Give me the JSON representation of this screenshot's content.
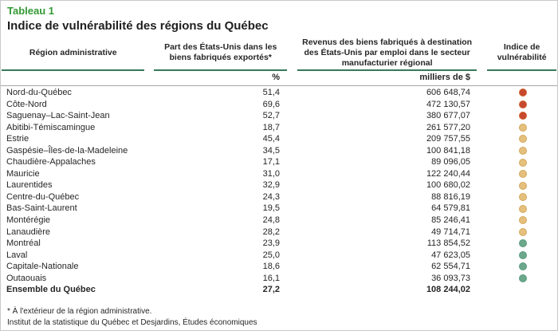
{
  "table": {
    "tag": "Tableau 1",
    "title": "Indice de vulnérabilité des régions du Québec",
    "columns": [
      {
        "label": "Région administrative",
        "unit": ""
      },
      {
        "label": "Part des États-Unis dans les biens fabriqués exportés*",
        "unit": "%"
      },
      {
        "label": "Revenus des biens fabriqués à destination des États-Unis par emploi dans le secteur manufacturier régional",
        "unit": "milliers de $"
      },
      {
        "label": "Indice de vulnérabilité",
        "unit": ""
      }
    ],
    "rows": [
      {
        "region": "Nord-du-Québec",
        "share": "51,4",
        "revenue": "606 648,74",
        "level": "high",
        "bold": false
      },
      {
        "region": "Côte-Nord",
        "share": "69,6",
        "revenue": "472 130,57",
        "level": "high",
        "bold": false
      },
      {
        "region": "Saguenay–Lac-Saint-Jean",
        "share": "52,7",
        "revenue": "380 677,07",
        "level": "high",
        "bold": false
      },
      {
        "region": "Abitibi-Témiscamingue",
        "share": "18,7",
        "revenue": "261 577,20",
        "level": "medium",
        "bold": false
      },
      {
        "region": "Estrie",
        "share": "45,4",
        "revenue": "209 757,55",
        "level": "medium",
        "bold": false
      },
      {
        "region": "Gaspésie–Îles-de-la-Madeleine",
        "share": "34,5",
        "revenue": "100 841,18",
        "level": "medium",
        "bold": false
      },
      {
        "region": "Chaudière-Appalaches",
        "share": "17,1",
        "revenue": "89 096,05",
        "level": "medium",
        "bold": false
      },
      {
        "region": "Mauricie",
        "share": "31,0",
        "revenue": "122 240,44",
        "level": "medium",
        "bold": false
      },
      {
        "region": "Laurentides",
        "share": "32,9",
        "revenue": "100 680,02",
        "level": "medium",
        "bold": false
      },
      {
        "region": "Centre-du-Québec",
        "share": "24,3",
        "revenue": "88 816,19",
        "level": "medium",
        "bold": false
      },
      {
        "region": "Bas-Saint-Laurent",
        "share": "19,5",
        "revenue": "64 579,81",
        "level": "medium",
        "bold": false
      },
      {
        "region": "Montérégie",
        "share": "24,8",
        "revenue": "85 246,41",
        "level": "medium",
        "bold": false
      },
      {
        "region": "Lanaudière",
        "share": "28,2",
        "revenue": "49 714,71",
        "level": "medium",
        "bold": false
      },
      {
        "region": "Montréal",
        "share": "23,9",
        "revenue": "113 854,52",
        "level": "low",
        "bold": false
      },
      {
        "region": "Laval",
        "share": "25,0",
        "revenue": "47 623,05",
        "level": "low",
        "bold": false
      },
      {
        "region": "Capitale-Nationale",
        "share": "18,6",
        "revenue": "62 554,71",
        "level": "low",
        "bold": false
      },
      {
        "region": "Outaouais",
        "share": "16,1",
        "revenue": "36 093,73",
        "level": "low",
        "bold": false
      },
      {
        "region": "Ensemble du Québec",
        "share": "27,2",
        "revenue": "108 244,02",
        "level": "none",
        "bold": true
      }
    ],
    "footnotes": [
      "* À l'extérieur de la région administrative.",
      "Institut de la statistique du Québec et Desjardins, Études économiques"
    ]
  },
  "colors": {
    "title_green": "#339933",
    "header_rule_green": "#35795B",
    "subheader_rule_gray": "#A6A6A6",
    "outer_border_gray": "#C9C9C9",
    "vulnerability_high": "#C7492F",
    "vulnerability_high_border": "#D1622F",
    "vulnerability_medium": "#E5C07D",
    "vulnerability_medium_border": "#D3A85C",
    "vulnerability_low": "#6BA88C",
    "vulnerability_low_border": "#5C9A7D"
  }
}
